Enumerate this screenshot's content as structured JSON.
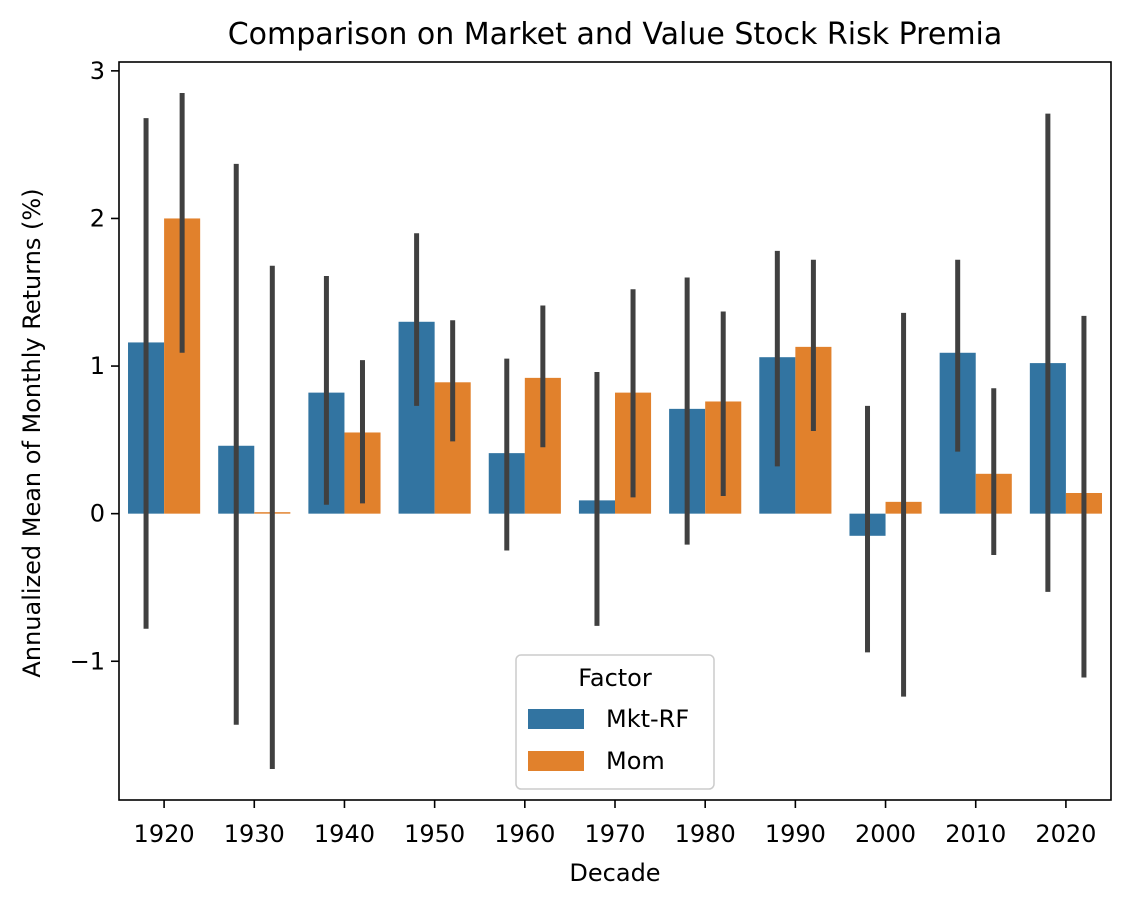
{
  "chart_data": {
    "type": "bar",
    "title": "Comparison on Market and Value Stock Risk Premia",
    "xlabel": "Decade",
    "ylabel": "Annualized Mean of Monthly Returns (%)",
    "categories": [
      "1920",
      "1930",
      "1940",
      "1950",
      "1960",
      "1970",
      "1980",
      "1990",
      "2000",
      "2010",
      "2020"
    ],
    "ylim": [
      -1.94,
      3.06
    ],
    "yticks": [
      -1,
      0,
      1,
      2,
      3
    ],
    "ytick_labels": [
      "−1",
      "0",
      "1",
      "2",
      "3"
    ],
    "grid": false,
    "legend": {
      "title": "Factor",
      "placement": "lower-center"
    },
    "series": [
      {
        "name": "Mkt-RF",
        "color": "#3274a1",
        "values": [
          1.16,
          0.46,
          0.82,
          1.3,
          0.41,
          0.09,
          0.71,
          1.06,
          -0.15,
          1.09,
          1.02
        ],
        "ci_low": [
          -0.78,
          -1.43,
          0.06,
          0.73,
          -0.25,
          -0.76,
          -0.21,
          0.32,
          -0.94,
          0.42,
          -0.53
        ],
        "ci_high": [
          2.68,
          2.37,
          1.61,
          1.9,
          1.05,
          0.96,
          1.6,
          1.78,
          0.73,
          1.72,
          2.71
        ]
      },
      {
        "name": "Mom",
        "color": "#e1812c",
        "values": [
          2.0,
          0.01,
          0.55,
          0.89,
          0.92,
          0.82,
          0.76,
          1.13,
          0.08,
          0.27,
          0.14
        ],
        "ci_low": [
          1.09,
          -1.73,
          0.07,
          0.49,
          0.45,
          0.11,
          0.12,
          0.56,
          -1.24,
          -0.28,
          -1.11
        ],
        "ci_high": [
          2.85,
          1.68,
          1.04,
          1.31,
          1.41,
          1.52,
          1.37,
          1.72,
          1.36,
          0.85,
          1.34
        ]
      }
    ],
    "errorbar_color": "#404040"
  }
}
